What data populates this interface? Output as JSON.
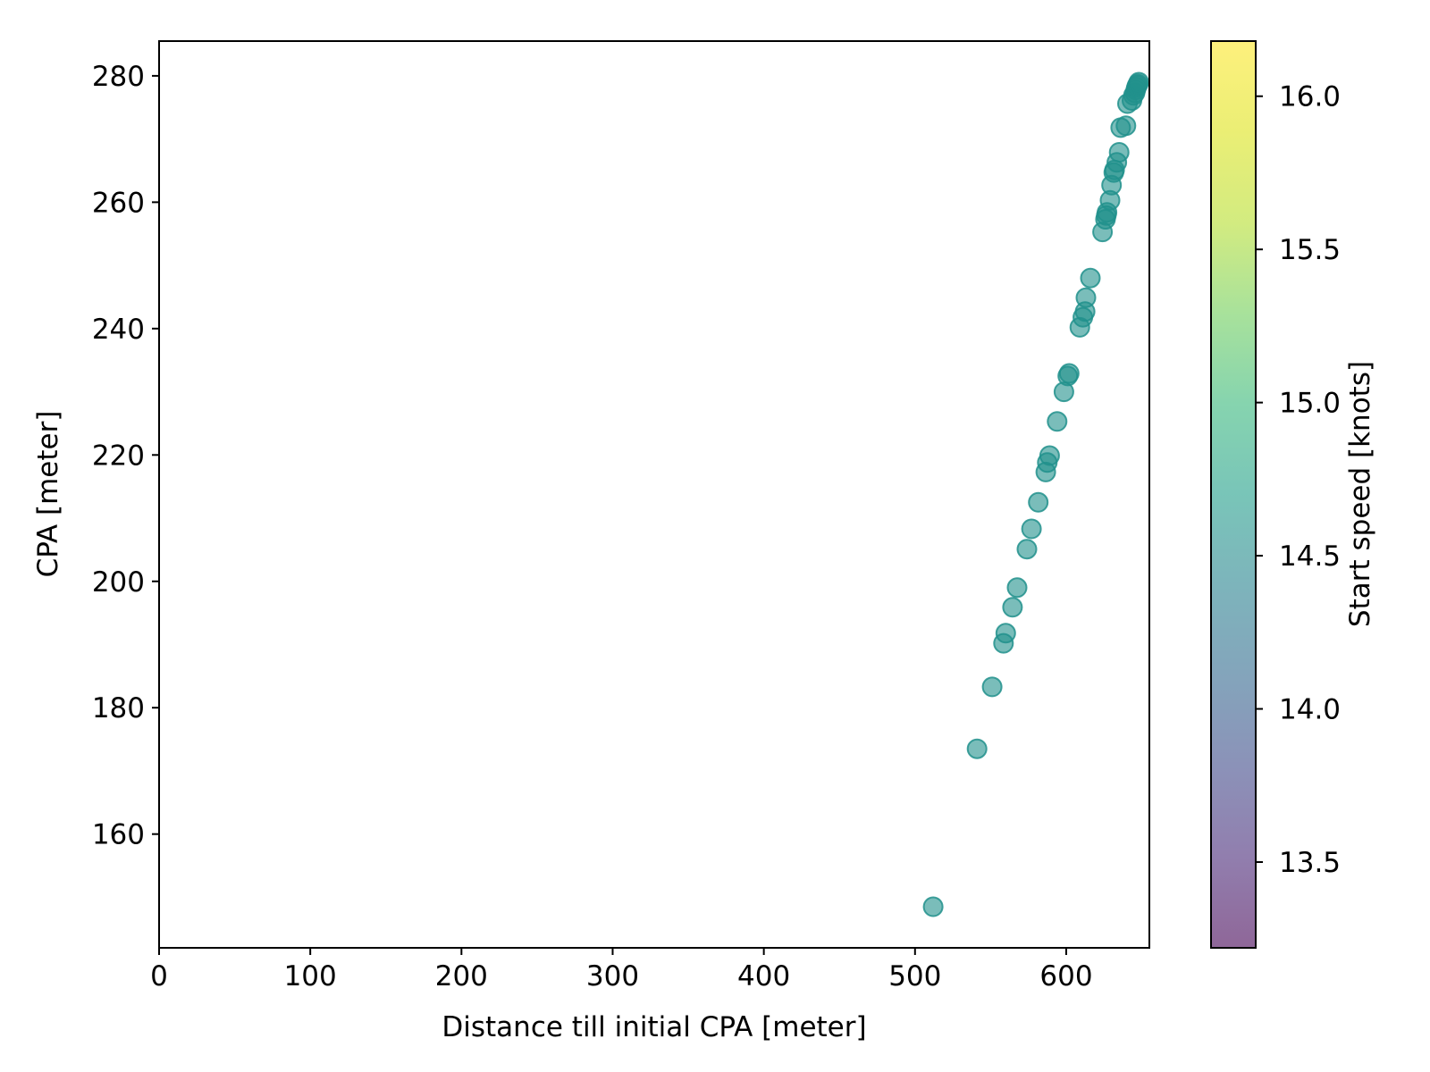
{
  "chart_data": {
    "type": "scatter",
    "title": "",
    "xlabel": "Distance till initial CPA [meter]",
    "ylabel": "CPA [meter]",
    "xlim": [
      0,
      655
    ],
    "ylim": [
      142,
      285.5
    ],
    "xticks": [
      0,
      100,
      200,
      300,
      400,
      500,
      600
    ],
    "yticks": [
      160,
      180,
      200,
      220,
      240,
      260,
      280
    ],
    "grid": false,
    "point_color": "#21918c",
    "point_alpha": 0.6,
    "series": [
      {
        "x": [
          512,
          541,
          551,
          558.5,
          560,
          564.5,
          567.5,
          574,
          577,
          581.5,
          586.5,
          587.5,
          589,
          594,
          598.5,
          601,
          602,
          609,
          611,
          612.5,
          613,
          616,
          624,
          626,
          626.5,
          627,
          629,
          630,
          631.5,
          632,
          633.5,
          635,
          636,
          639.5,
          640.5,
          643.5,
          644.5,
          645.5,
          646,
          646.5,
          647,
          647.5,
          648
        ],
        "y": [
          148.5,
          173.5,
          183.3,
          190.2,
          191.8,
          195.9,
          199.0,
          205.1,
          208.3,
          212.5,
          217.3,
          218.8,
          219.9,
          225.3,
          230.0,
          232.5,
          232.9,
          240.2,
          241.8,
          242.7,
          244.9,
          248.0,
          255.3,
          257.3,
          257.9,
          258.4,
          260.3,
          262.7,
          264.7,
          265.1,
          266.3,
          267.9,
          271.8,
          272.1,
          275.6,
          276.1,
          276.9,
          277.3,
          277.8,
          278.2,
          278.5,
          278.7,
          279.0
        ],
        "c": [
          14.77,
          14.77,
          14.77,
          14.77,
          14.77,
          14.77,
          14.77,
          14.77,
          14.77,
          14.77,
          14.77,
          14.77,
          14.77,
          14.77,
          14.77,
          14.77,
          14.77,
          14.77,
          14.77,
          14.77,
          14.77,
          14.77,
          14.77,
          14.77,
          14.77,
          14.77,
          14.77,
          14.77,
          14.77,
          14.77,
          14.77,
          14.77,
          14.77,
          14.77,
          14.77,
          14.77,
          14.77,
          14.77,
          14.77,
          14.77,
          14.77,
          14.77,
          14.77
        ]
      }
    ],
    "colorbar": {
      "label": "Start speed [knots]",
      "colormap": "viridis",
      "range": [
        13.22,
        16.18
      ],
      "ticks": [
        "13.5",
        "14.0",
        "14.5",
        "15.0",
        "15.5",
        "16.0"
      ],
      "alpha": 0.6
    }
  }
}
